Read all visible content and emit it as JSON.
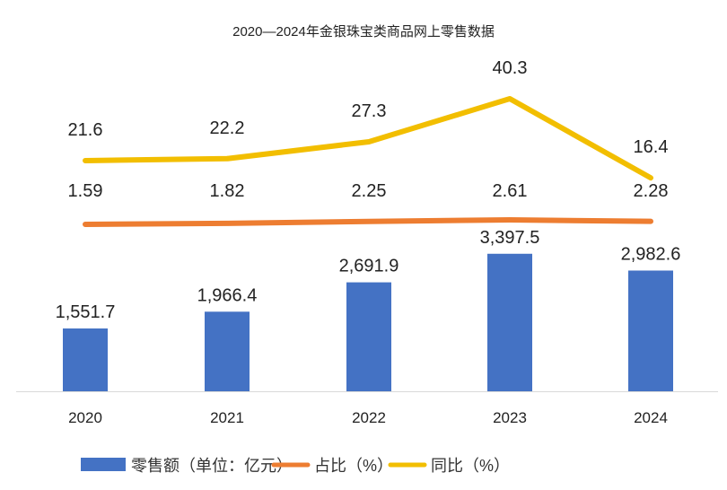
{
  "chart_data": {
    "type": "bar+line",
    "title": "2020—2024年金银珠宝类商品网上零售数据",
    "categories": [
      "2020",
      "2021",
      "2022",
      "2023",
      "2024"
    ],
    "series": [
      {
        "name": "零售额（单位：亿元）",
        "type": "bar",
        "color": "#4472C4",
        "values": [
          1551.7,
          1966.4,
          2691.9,
          3397.5,
          2982.6
        ],
        "labels": [
          "1,551.7",
          "1,966.4",
          "2,691.9",
          "3,397.5",
          "2,982.6"
        ]
      },
      {
        "name": "占比（%）",
        "type": "line",
        "color": "#ED7D31",
        "values": [
          1.59,
          1.82,
          2.25,
          2.61,
          2.28
        ],
        "labels": [
          "1.59",
          "1.82",
          "2.25",
          "2.61",
          "2.28"
        ]
      },
      {
        "name": "同比（%）",
        "type": "line",
        "color": "#F2BE00",
        "values": [
          21.6,
          22.2,
          27.3,
          40.3,
          16.4
        ],
        "labels": [
          "21.6",
          "22.2",
          "27.3",
          "40.3",
          "16.4"
        ]
      }
    ],
    "grid": false,
    "legend": "bottom"
  }
}
